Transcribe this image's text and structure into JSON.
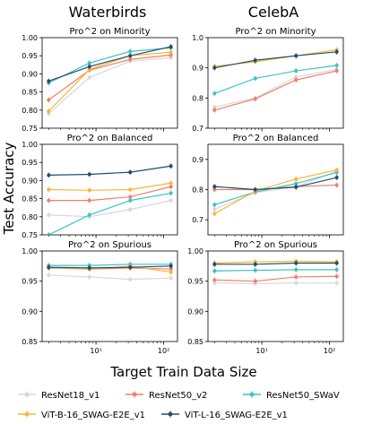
{
  "figure": {
    "columns": [
      "Waterbirds",
      "CelebA"
    ],
    "ylabel": "Test Accuracy",
    "xlabel": "Target Train Data Size"
  },
  "series": [
    {
      "name": "ResNet18_v1",
      "color": "#d8d8d8"
    },
    {
      "name": "ResNet50_v2",
      "color": "#f08068"
    },
    {
      "name": "ResNet50_SWaV",
      "color": "#3ec1c9"
    },
    {
      "name": "ViT-B-16_SWAG-E2E_v1",
      "color": "#fdb436"
    },
    {
      "name": "ViT-L-16_SWAG-E2E_v1",
      "color": "#1f4e6e"
    }
  ],
  "chart_data": [
    {
      "type": "line",
      "dataset": "Waterbirds",
      "title": "Pro^2 on Minority",
      "x": [
        2,
        8,
        32,
        128
      ],
      "xscale": "log",
      "ylim": [
        0.75,
        1.0
      ],
      "yticks": [
        "0.75",
        "0.80",
        "0.85",
        "0.90",
        "0.95",
        "1.00"
      ],
      "xticks": [
        {
          "value": 10,
          "label": "10¹"
        },
        {
          "value": 100,
          "label": "10²"
        }
      ],
      "series": [
        {
          "name": "ResNet18_v1",
          "values": [
            0.79,
            0.89,
            0.935,
            0.945
          ]
        },
        {
          "name": "ResNet50_v2",
          "values": [
            0.828,
            0.91,
            0.94,
            0.952
          ]
        },
        {
          "name": "ResNet50_SWaV",
          "values": [
            0.875,
            0.93,
            0.962,
            0.972
          ]
        },
        {
          "name": "ViT-B-16_SWAG-E2E_v1",
          "values": [
            0.797,
            0.912,
            0.95,
            0.96
          ]
        },
        {
          "name": "ViT-L-16_SWAG-E2E_v1",
          "values": [
            0.88,
            0.92,
            0.95,
            0.975
          ]
        }
      ]
    },
    {
      "type": "line",
      "dataset": "CelebA",
      "title": "Pro^2 on Minority",
      "x": [
        2,
        8,
        32,
        128
      ],
      "xscale": "log",
      "ylim": [
        0.7,
        1.0
      ],
      "yticks": [
        "0.7",
        "0.8",
        "0.9",
        "1.0"
      ],
      "xticks": [
        {
          "value": 10,
          "label": "10¹"
        },
        {
          "value": 100,
          "label": "10²"
        }
      ],
      "series": [
        {
          "name": "ResNet18_v1",
          "values": [
            0.77,
            0.8,
            0.87,
            0.895
          ]
        },
        {
          "name": "ResNet50_v2",
          "values": [
            0.76,
            0.797,
            0.86,
            0.89
          ]
        },
        {
          "name": "ResNet50_SWaV",
          "values": [
            0.815,
            0.865,
            0.89,
            0.908
          ]
        },
        {
          "name": "ViT-B-16_SWAG-E2E_v1",
          "values": [
            0.905,
            0.92,
            0.94,
            0.96
          ]
        },
        {
          "name": "ViT-L-16_SWAG-E2E_v1",
          "values": [
            0.9,
            0.925,
            0.94,
            0.953
          ]
        }
      ]
    },
    {
      "type": "line",
      "dataset": "Waterbirds",
      "title": "Pro^2 on Balanced",
      "x": [
        2,
        8,
        32,
        128
      ],
      "xscale": "log",
      "ylim": [
        0.75,
        1.0
      ],
      "yticks": [
        "0.75",
        "0.80",
        "0.85",
        "0.90",
        "0.95",
        "1.00"
      ],
      "xticks": [
        {
          "value": 10,
          "label": "10¹"
        },
        {
          "value": 100,
          "label": "10²"
        }
      ],
      "series": [
        {
          "name": "ResNet18_v1",
          "values": [
            0.805,
            0.8,
            0.82,
            0.845
          ]
        },
        {
          "name": "ResNet50_v2",
          "values": [
            0.845,
            0.845,
            0.855,
            0.883
          ]
        },
        {
          "name": "ResNet50_SWaV",
          "values": [
            0.75,
            0.805,
            0.845,
            0.865
          ]
        },
        {
          "name": "ViT-B-16_SWAG-E2E_v1",
          "values": [
            0.875,
            0.873,
            0.875,
            0.893
          ]
        },
        {
          "name": "ViT-L-16_SWAG-E2E_v1",
          "values": [
            0.915,
            0.917,
            0.923,
            0.94
          ]
        }
      ]
    },
    {
      "type": "line",
      "dataset": "CelebA",
      "title": "Pro^2 on Balanced",
      "x": [
        2,
        8,
        32,
        128
      ],
      "xscale": "log",
      "ylim": [
        0.65,
        0.95
      ],
      "yticks": [
        "0.7",
        "0.8",
        "0.9"
      ],
      "xticks": [
        {
          "value": 10,
          "label": "10¹"
        },
        {
          "value": 100,
          "label": "10²"
        }
      ],
      "series": [
        {
          "name": "ResNet18_v1",
          "values": [
            0.735,
            0.79,
            0.81,
            0.86
          ]
        },
        {
          "name": "ResNet50_v2",
          "values": [
            0.8,
            0.8,
            0.81,
            0.815
          ]
        },
        {
          "name": "ResNet50_SWaV",
          "values": [
            0.75,
            0.792,
            0.82,
            0.857
          ]
        },
        {
          "name": "ViT-B-16_SWAG-E2E_v1",
          "values": [
            0.72,
            0.795,
            0.835,
            0.865
          ]
        },
        {
          "name": "ViT-L-16_SWAG-E2E_v1",
          "values": [
            0.81,
            0.8,
            0.808,
            0.84
          ]
        }
      ]
    },
    {
      "type": "line",
      "dataset": "Waterbirds",
      "title": "Pro^2 on Spurious",
      "x": [
        2,
        8,
        32,
        128
      ],
      "xscale": "log",
      "ylim": [
        0.85,
        1.0
      ],
      "yticks": [
        "0.85",
        "0.90",
        "0.95",
        "1.00"
      ],
      "xticks": [
        {
          "value": 10,
          "label": "10¹"
        },
        {
          "value": 100,
          "label": "10²"
        }
      ],
      "series": [
        {
          "name": "ResNet18_v1",
          "values": [
            0.96,
            0.957,
            0.953,
            0.955
          ]
        },
        {
          "name": "ResNet50_v2",
          "values": [
            0.972,
            0.97,
            0.972,
            0.97
          ]
        },
        {
          "name": "ResNet50_SWaV",
          "values": [
            0.976,
            0.976,
            0.978,
            0.978
          ]
        },
        {
          "name": "ViT-B-16_SWAG-E2E_v1",
          "values": [
            0.973,
            0.97,
            0.975,
            0.965
          ]
        },
        {
          "name": "ViT-L-16_SWAG-E2E_v1",
          "values": [
            0.973,
            0.972,
            0.973,
            0.975
          ]
        }
      ]
    },
    {
      "type": "line",
      "dataset": "CelebA",
      "title": "Pro^2 on Spurious",
      "x": [
        2,
        8,
        32,
        128
      ],
      "xscale": "log",
      "ylim": [
        0.85,
        1.0
      ],
      "yticks": [
        "0.85",
        "0.90",
        "0.95",
        "1.00"
      ],
      "xticks": [
        {
          "value": 10,
          "label": "10¹"
        },
        {
          "value": 100,
          "label": "10²"
        }
      ],
      "series": [
        {
          "name": "ResNet18_v1",
          "values": [
            0.947,
            0.946,
            0.947,
            0.947
          ]
        },
        {
          "name": "ResNet50_v2",
          "values": [
            0.952,
            0.95,
            0.957,
            0.958
          ]
        },
        {
          "name": "ResNet50_SWaV",
          "values": [
            0.967,
            0.968,
            0.969,
            0.969
          ]
        },
        {
          "name": "ViT-B-16_SWAG-E2E_v1",
          "values": [
            0.98,
            0.982,
            0.983,
            0.982
          ]
        },
        {
          "name": "ViT-L-16_SWAG-E2E_v1",
          "values": [
            0.978,
            0.978,
            0.98,
            0.98
          ]
        }
      ]
    }
  ]
}
